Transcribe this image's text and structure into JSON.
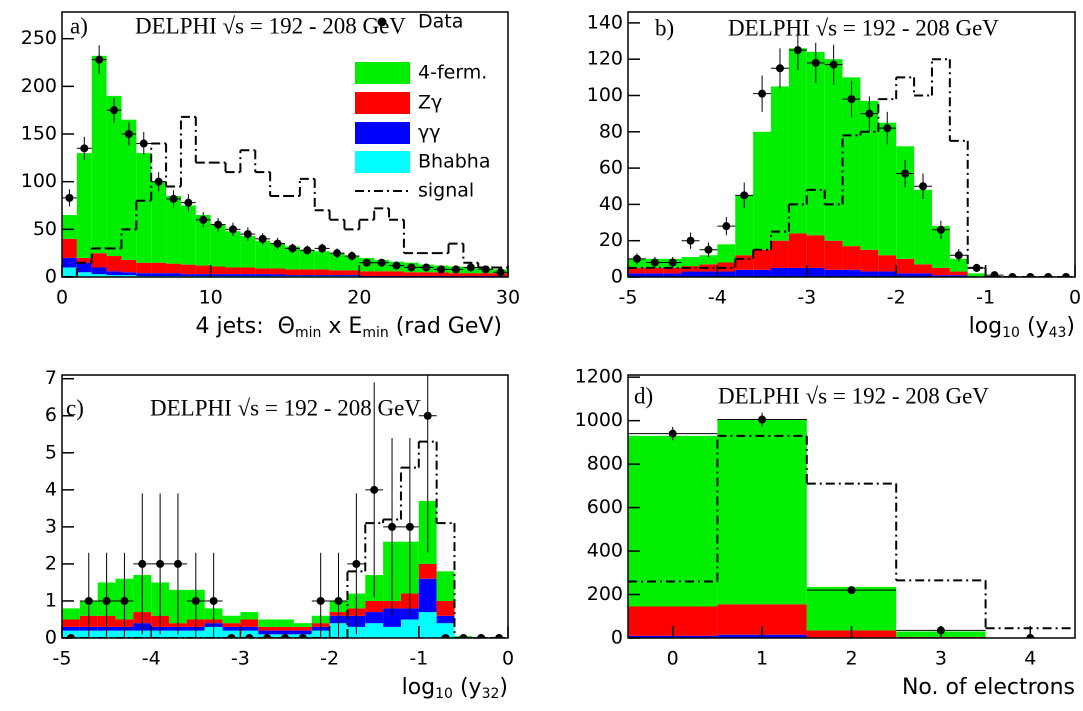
{
  "chart_data": [
    {
      "type": "stacked-histogram",
      "label": "a)",
      "title": "DELPHI √s = 192 - 208 GeV",
      "xlabel": [
        {
          "text": "4 jets:  Θ"
        },
        {
          "text": "min",
          "sub": true
        },
        {
          "text": " x E"
        },
        {
          "text": "min",
          "sub": true
        },
        {
          "text": " (rad GeV)"
        }
      ],
      "bins": [
        0,
        1,
        2,
        3,
        4,
        5,
        6,
        7,
        8,
        9,
        10,
        11,
        12,
        13,
        14,
        15,
        16,
        17,
        18,
        19,
        20,
        21,
        22,
        23,
        24,
        25,
        26,
        27,
        28,
        29,
        30
      ],
      "xlim": [
        0,
        30
      ],
      "xticks": [
        0,
        10,
        20,
        30
      ],
      "ylim": [
        0,
        278
      ],
      "yticks": [
        0,
        50,
        100,
        150,
        200,
        250
      ],
      "legend": "upper right",
      "data_points": {
        "name": "Data",
        "color": "#000000",
        "values": [
          83,
          135,
          228,
          175,
          150,
          140,
          100,
          82,
          78,
          60,
          55,
          50,
          45,
          40,
          35,
          30,
          28,
          30,
          25,
          22,
          15,
          15,
          12,
          10,
          10,
          8,
          8,
          10,
          8,
          5
        ],
        "errors": [
          9,
          12,
          15,
          13,
          12,
          12,
          10,
          9,
          9,
          8,
          7,
          7,
          7,
          6,
          6,
          5,
          5,
          5,
          5,
          5,
          4,
          4,
          3,
          3,
          3,
          3,
          3,
          3,
          3,
          2
        ]
      },
      "series": [
        {
          "name": "4-ferm.",
          "color": "#00ee00",
          "values": [
            25,
            110,
            207,
            168,
            147,
            115,
            85,
            71,
            62,
            53,
            44,
            38,
            33,
            29,
            26,
            24,
            20,
            19,
            18,
            15,
            14,
            12,
            10,
            10,
            8,
            7,
            7,
            6,
            5,
            4
          ]
        },
        {
          "name": "Zγ",
          "color": "#ff0000",
          "values": [
            20,
            5,
            15,
            16,
            13,
            11,
            11,
            10,
            10,
            9,
            8,
            7,
            7,
            6,
            6,
            6,
            6,
            6,
            5,
            5,
            5,
            5,
            5,
            4,
            4,
            4,
            3,
            3,
            3,
            3
          ]
        },
        {
          "name": "γγ",
          "color": "#0000ff",
          "values": [
            10,
            10,
            7,
            4,
            3,
            3,
            3,
            3,
            2,
            2,
            2,
            2,
            2,
            2,
            2,
            1,
            1,
            1,
            1,
            1,
            1,
            1,
            1,
            1,
            1,
            1,
            1,
            1,
            1,
            1
          ]
        },
        {
          "name": "Bhabha",
          "color": "#00ffff",
          "values": [
            10,
            5,
            3,
            2,
            2,
            1,
            1,
            1,
            1,
            1,
            1,
            1,
            1,
            1,
            1,
            1,
            1,
            1,
            1,
            1,
            0,
            0,
            0,
            0,
            0,
            0,
            0,
            0,
            0,
            0
          ]
        }
      ],
      "signal": {
        "name": "signal",
        "color": "#000000",
        "values": [
          0,
          15,
          30,
          30,
          50,
          80,
          140,
          95,
          168,
          120,
          120,
          110,
          133,
          110,
          85,
          85,
          103,
          70,
          60,
          50,
          60,
          72,
          60,
          25,
          25,
          25,
          35,
          15,
          10,
          10
        ]
      }
    },
    {
      "type": "stacked-histogram",
      "label": "b)",
      "title": "DELPHI √s = 192 - 208 GeV",
      "xlabel": [
        {
          "text": "log"
        },
        {
          "text": "10",
          "sub": true
        },
        {
          "text": " (y"
        },
        {
          "text": "43",
          "sub": true
        },
        {
          "text": ")"
        }
      ],
      "bins": [
        -5,
        -4.8,
        -4.6,
        -4.4,
        -4.2,
        -4,
        -3.8,
        -3.6,
        -3.4,
        -3.2,
        -3,
        -2.8,
        -2.6,
        -2.4,
        -2.2,
        -2,
        -1.8,
        -1.6,
        -1.4,
        -1.2,
        -1,
        -0.8,
        -0.6,
        -0.4,
        -0.2,
        0
      ],
      "xlim": [
        -5,
        0
      ],
      "xticks": [
        -5,
        -4,
        -3,
        -2,
        -1,
        0
      ],
      "ylim": [
        0,
        146
      ],
      "yticks": [
        0,
        20,
        40,
        60,
        80,
        100,
        120,
        140
      ],
      "data_points": {
        "name": "Data",
        "color": "#000000",
        "values": [
          10,
          8,
          8,
          20,
          15,
          28,
          45,
          101,
          115,
          125,
          118,
          117,
          98,
          90,
          82,
          57,
          50,
          26,
          12,
          5,
          1,
          0,
          0,
          0,
          0
        ],
        "errors": [
          3,
          3,
          3,
          4.5,
          4,
          5,
          7,
          10,
          11,
          11,
          11,
          11,
          10,
          9.5,
          9,
          7.5,
          7,
          5,
          3.5,
          2.2,
          1,
          0,
          0,
          0,
          0
        ]
      },
      "series": [
        {
          "name": "4-ferm.",
          "color": "#00ee00",
          "values": [
            5,
            5,
            5,
            5,
            5,
            10,
            33,
            65,
            85,
            102,
            101,
            100,
            93,
            82,
            73,
            62,
            41,
            23,
            7,
            2,
            0,
            0,
            0,
            0,
            0
          ]
        },
        {
          "name": "Zγ",
          "color": "#ff0000",
          "values": [
            3,
            3,
            3,
            3,
            4,
            5,
            8,
            11,
            15,
            19,
            18,
            16,
            13,
            12,
            9,
            8,
            5,
            4,
            2,
            0,
            0,
            0,
            0,
            0,
            0
          ]
        },
        {
          "name": "γγ",
          "color": "#0000ff",
          "values": [
            2,
            2,
            2,
            3,
            3,
            3,
            4,
            4,
            5,
            5,
            5,
            4,
            4,
            3,
            3,
            2,
            2,
            1,
            1,
            0,
            0,
            0,
            0,
            0,
            0
          ]
        },
        {
          "name": "Bhabha",
          "color": "#00ffff",
          "values": [
            0,
            0,
            0,
            0,
            0,
            0,
            0,
            0,
            0,
            0,
            0,
            0,
            0,
            0,
            0,
            0,
            0,
            0,
            0,
            0,
            0,
            0,
            0,
            0,
            0
          ]
        }
      ],
      "signal": {
        "name": "signal",
        "color": "#000000",
        "values": [
          5,
          5,
          5,
          5,
          5,
          5,
          10,
          15,
          25,
          40,
          48,
          40,
          78,
          80,
          98,
          110,
          100,
          120,
          75,
          5,
          0,
          0,
          0,
          0,
          0
        ]
      }
    },
    {
      "type": "stacked-histogram",
      "label": "c)",
      "title": "DELPHI √s = 192 - 208 GeV",
      "xlabel": [
        {
          "text": "log"
        },
        {
          "text": "10",
          "sub": true
        },
        {
          "text": " (y"
        },
        {
          "text": "32",
          "sub": true
        },
        {
          "text": ")"
        }
      ],
      "bins": [
        -5,
        -4.8,
        -4.6,
        -4.4,
        -4.2,
        -4,
        -3.8,
        -3.6,
        -3.4,
        -3.2,
        -3,
        -2.8,
        -2.6,
        -2.4,
        -2.2,
        -2,
        -1.8,
        -1.6,
        -1.4,
        -1.2,
        -1,
        -0.8,
        -0.6,
        -0.4,
        -0.2,
        0
      ],
      "xlim": [
        -5,
        0
      ],
      "xticks": [
        -5,
        -4,
        -3,
        -2,
        -1,
        0
      ],
      "ylim": [
        0,
        7.1
      ],
      "yticks": [
        0,
        1,
        2,
        3,
        4,
        5,
        6,
        7
      ],
      "data_points": {
        "name": "Data",
        "color": "#000000",
        "values": [
          0,
          1,
          1,
          1,
          2,
          2,
          2,
          1,
          1,
          0,
          0,
          0,
          0,
          0,
          1,
          1,
          2,
          4,
          3,
          3,
          6,
          0,
          0,
          0,
          0
        ],
        "errors": [
          0,
          1.3,
          1.3,
          1.3,
          1.9,
          1.9,
          1.9,
          1.3,
          1.3,
          0,
          0,
          0,
          0,
          0,
          1.3,
          1.3,
          1.9,
          2.9,
          2.4,
          2.4,
          3.7,
          0,
          0,
          0,
          0
        ]
      },
      "series": [
        {
          "name": "4-ferm.",
          "color": "#00ee00",
          "values": [
            0.3,
            0.4,
            0.9,
            1.1,
            1.0,
            0.9,
            0.9,
            0.8,
            0.3,
            0.2,
            0.2,
            0.2,
            0.2,
            0.1,
            0.2,
            0.3,
            0.4,
            0.7,
            1.6,
            1.4,
            1.7,
            0.8,
            0.05,
            0,
            0
          ]
        },
        {
          "name": "Zγ",
          "color": "#ff0000",
          "values": [
            0.2,
            0.3,
            0.3,
            0.2,
            0.3,
            0.3,
            0.1,
            0.2,
            0.1,
            0.1,
            0.2,
            0.1,
            0.1,
            0.1,
            0.1,
            0.1,
            0.2,
            0.3,
            0.2,
            0.4,
            0.4,
            0.4,
            0,
            0,
            0
          ]
        },
        {
          "name": "γγ",
          "color": "#0000ff",
          "values": [
            0.1,
            0.1,
            0.1,
            0.1,
            0.2,
            0.1,
            0.1,
            0.1,
            0.1,
            0.1,
            0.1,
            0.1,
            0.1,
            0.1,
            0.1,
            0.2,
            0.3,
            0.3,
            0.5,
            0.3,
            0.9,
            0.2,
            0,
            0,
            0
          ]
        },
        {
          "name": "Bhabha",
          "color": "#00ffff",
          "values": [
            0.2,
            0.2,
            0.2,
            0.2,
            0.2,
            0.2,
            0.2,
            0.2,
            0.3,
            0.2,
            0.2,
            0.1,
            0.1,
            0.1,
            0.2,
            0.4,
            0.3,
            0.4,
            0.3,
            0.5,
            0.7,
            0.4,
            0,
            0,
            0
          ]
        }
      ],
      "signal": {
        "name": "signal",
        "color": "#000000",
        "values": [
          0,
          0,
          0,
          0,
          0,
          0,
          0,
          0,
          0,
          0,
          0,
          0,
          0,
          0,
          0,
          0,
          1.8,
          3.1,
          3.2,
          4.6,
          5.3,
          3.1,
          0,
          0,
          0
        ]
      }
    },
    {
      "type": "stacked-histogram",
      "label": "d)",
      "title": "DELPHI √s = 192 - 208 GeV",
      "xlabel": [
        {
          "text": "No. of electrons"
        }
      ],
      "bins": [
        -0.5,
        0.5,
        1.5,
        2.5,
        3.5,
        4.5
      ],
      "xlim": [
        -0.5,
        4.5
      ],
      "xticks": [
        0,
        1,
        2,
        3,
        4
      ],
      "ylim": [
        0,
        1210
      ],
      "yticks": [
        0,
        200,
        400,
        600,
        800,
        1000,
        1200
      ],
      "data_points": {
        "name": "Data",
        "color": "#000000",
        "values": [
          940,
          1005,
          220,
          35,
          0
        ],
        "errors": [
          31,
          32,
          15,
          6,
          0
        ]
      },
      "series": [
        {
          "name": "4-ferm.",
          "color": "#00ee00",
          "values": [
            785,
            850,
            200,
            25,
            0
          ]
        },
        {
          "name": "Zγ",
          "color": "#ff0000",
          "values": [
            135,
            140,
            32,
            5,
            0
          ]
        },
        {
          "name": "γγ",
          "color": "#0000ff",
          "values": [
            10,
            15,
            3,
            0,
            0
          ]
        },
        {
          "name": "Bhabha",
          "color": "#00ffff",
          "values": [
            0,
            0,
            0,
            0,
            0
          ]
        }
      ],
      "signal": {
        "name": "signal",
        "color": "#000000",
        "values": [
          260,
          930,
          710,
          265,
          45
        ]
      }
    }
  ]
}
